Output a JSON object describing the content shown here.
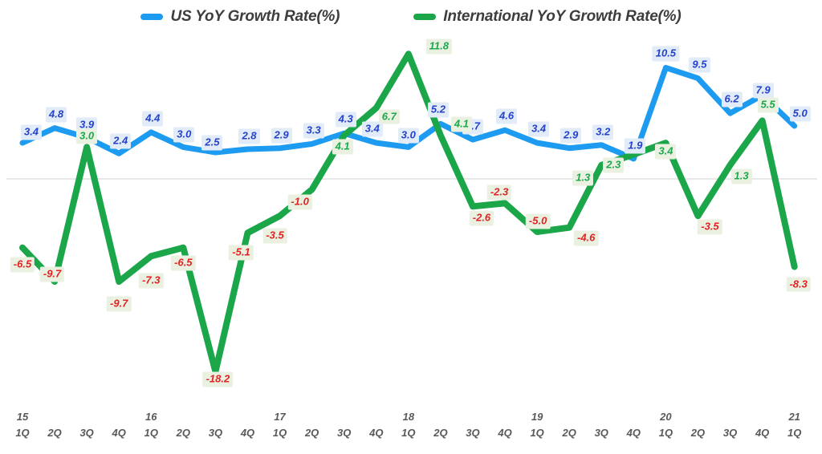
{
  "legend": {
    "items": [
      {
        "label": "US YoY Growth Rate(%)"
      },
      {
        "label": "International YoY Growth Rate(%)"
      }
    ]
  },
  "chart_data": {
    "type": "line",
    "title": "",
    "xlabel": "",
    "ylabel": "",
    "ylim": [
      -20,
      13
    ],
    "grid": false,
    "zero_line": true,
    "legend_position": "top-center",
    "categories": [
      "15 1Q",
      "15 2Q",
      "15 3Q",
      "15 4Q",
      "16 1Q",
      "16 2Q",
      "16 3Q",
      "16 4Q",
      "17 1Q",
      "17 2Q",
      "17 3Q",
      "17 4Q",
      "18 1Q",
      "18 2Q",
      "18 3Q",
      "18 4Q",
      "19 1Q",
      "19 2Q",
      "19 3Q",
      "19 4Q",
      "20 1Q",
      "20 2Q",
      "20 3Q",
      "20 4Q",
      "21 1Q"
    ],
    "x_axis": {
      "quarter_labels": [
        "1Q",
        "2Q",
        "3Q",
        "4Q",
        "1Q",
        "2Q",
        "3Q",
        "4Q",
        "1Q",
        "2Q",
        "3Q",
        "4Q",
        "1Q",
        "2Q",
        "3Q",
        "4Q",
        "1Q",
        "2Q",
        "3Q",
        "4Q",
        "1Q",
        "2Q",
        "3Q",
        "4Q",
        "1Q"
      ],
      "years": [
        "15",
        "16",
        "17",
        "18",
        "19",
        "20",
        "21"
      ],
      "year_indices": [
        0,
        4,
        8,
        12,
        16,
        20,
        24
      ]
    },
    "series": [
      {
        "name": "US YoY Growth Rate(%)",
        "color": "#1c9bf0",
        "label_color": "#2442cc",
        "label_bg": "#e2ebf8",
        "values": [
          3.4,
          4.8,
          3.9,
          2.4,
          4.4,
          3.0,
          2.5,
          2.8,
          2.9,
          3.3,
          4.3,
          3.4,
          3.0,
          5.2,
          3.7,
          4.6,
          3.4,
          2.9,
          3.2,
          1.9,
          10.5,
          9.5,
          6.2,
          7.9,
          5.0
        ]
      },
      {
        "name": "International YoY Growth Rate(%)",
        "color": "#1ba64a",
        "label_color": "#1ca94d",
        "negative_label_color": "#e32222",
        "label_bg": "#eaf1e1",
        "values": [
          -6.5,
          -9.7,
          3.0,
          -9.7,
          -7.3,
          -6.5,
          -18.2,
          -5.1,
          -3.5,
          -1.0,
          4.1,
          6.7,
          11.8,
          4.1,
          -2.6,
          -2.3,
          -5.0,
          -4.6,
          1.3,
          2.3,
          3.4,
          -3.5,
          1.3,
          5.5,
          -8.3
        ]
      }
    ],
    "colors": {
      "zero_line": "#d9d9d9",
      "axis_text": "#595959",
      "legend_text": "#3d3d3d"
    }
  }
}
